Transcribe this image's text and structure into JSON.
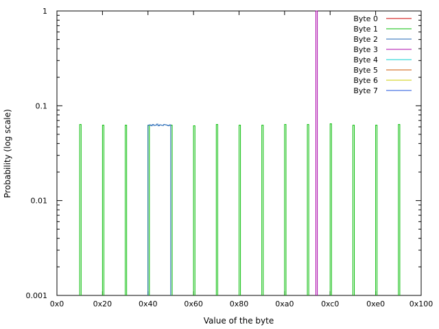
{
  "chart_data": {
    "type": "line",
    "title": "",
    "xlabel": "Value of the byte",
    "ylabel": "Probability (log scale)",
    "xlim": [
      0,
      256
    ],
    "ylim": [
      0.001,
      1
    ],
    "yscale": "log",
    "grid": false,
    "legend_position": "top-right",
    "xticks": [
      {
        "value": 0,
        "label": "0x0"
      },
      {
        "value": 32,
        "label": "0x20"
      },
      {
        "value": 64,
        "label": "0x40"
      },
      {
        "value": 96,
        "label": "0x60"
      },
      {
        "value": 128,
        "label": "0x80"
      },
      {
        "value": 160,
        "label": "0xa0"
      },
      {
        "value": 192,
        "label": "0xc0"
      },
      {
        "value": 224,
        "label": "0xe0"
      },
      {
        "value": 256,
        "label": "0x100"
      }
    ],
    "yticks": [
      {
        "value": 0.001,
        "label": "0.001"
      },
      {
        "value": 0.01,
        "label": "0.01"
      },
      {
        "value": 0.1,
        "label": "0.1"
      },
      {
        "value": 1,
        "label": "1"
      }
    ],
    "series": [
      {
        "name": "Byte 0",
        "color": "#cc0000",
        "spikes": []
      },
      {
        "name": "Byte 1",
        "color": "#00bb00",
        "spikes": [
          {
            "x": 16,
            "y": 0.0635
          },
          {
            "x": 32,
            "y": 0.0625
          },
          {
            "x": 48,
            "y": 0.0625
          },
          {
            "x": 64,
            "y": 0.0625
          },
          {
            "x": 80,
            "y": 0.0625
          },
          {
            "x": 96,
            "y": 0.0615
          },
          {
            "x": 112,
            "y": 0.0635
          },
          {
            "x": 128,
            "y": 0.0625
          },
          {
            "x": 144,
            "y": 0.0625
          },
          {
            "x": 160,
            "y": 0.0635
          },
          {
            "x": 176,
            "y": 0.0635
          },
          {
            "x": 192,
            "y": 0.0645
          },
          {
            "x": 208,
            "y": 0.0625
          },
          {
            "x": 224,
            "y": 0.0625
          },
          {
            "x": 240,
            "y": 0.0635
          }
        ]
      },
      {
        "name": "Byte 2",
        "color": "#1e64b4",
        "block": {
          "x_start": 64,
          "x_end": 80,
          "y": [
            0.0625,
            0.063,
            0.0615,
            0.0635,
            0.062,
            0.0625,
            0.064,
            0.0615,
            0.063,
            0.0625,
            0.062,
            0.0635,
            0.063,
            0.0625,
            0.0615,
            0.063
          ]
        }
      },
      {
        "name": "Byte 3",
        "color": "#aa00aa",
        "spikes": [
          {
            "x": 182,
            "y": 1
          }
        ]
      },
      {
        "name": "Byte 4",
        "color": "#00cccc",
        "spikes": []
      },
      {
        "name": "Byte 5",
        "color": "#cc5500",
        "spikes": []
      },
      {
        "name": "Byte 6",
        "color": "#cccc00",
        "spikes": []
      },
      {
        "name": "Byte 7",
        "color": "#2255dd",
        "spikes": []
      }
    ]
  }
}
